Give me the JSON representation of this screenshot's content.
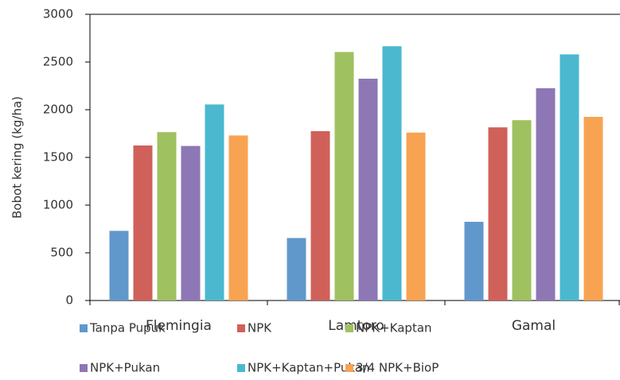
{
  "chart_data": {
    "type": "bar",
    "categories": [
      "Flemingia",
      "Lamtoro",
      "Gamal"
    ],
    "y_label": "Bobot kering (kg/ha)",
    "series": [
      {
        "name": "Tanpa Pupuk",
        "color": "#6198cc",
        "values": [
          730,
          655,
          825
        ]
      },
      {
        "name": "NPK",
        "color": "#d0605a",
        "values": [
          1625,
          1775,
          1815
        ]
      },
      {
        "name": "NPK+Kaptan",
        "color": "#9fc160",
        "values": [
          1765,
          2605,
          1890
        ]
      },
      {
        "name": "NPK+Pukan",
        "color": "#8e77b5",
        "values": [
          1620,
          2325,
          2225
        ]
      },
      {
        "name": "NPK+Kaptan+Pukan",
        "color": "#4bb8d0",
        "values": [
          2055,
          2665,
          2580
        ]
      },
      {
        "name": "3/4 NPK+BioP",
        "color": "#f8a352",
        "values": [
          1730,
          1760,
          1925
        ]
      }
    ],
    "ylim": [
      0,
      3000
    ],
    "yticks": [
      0,
      500,
      1000,
      1500,
      2000,
      2500,
      3000
    ]
  }
}
